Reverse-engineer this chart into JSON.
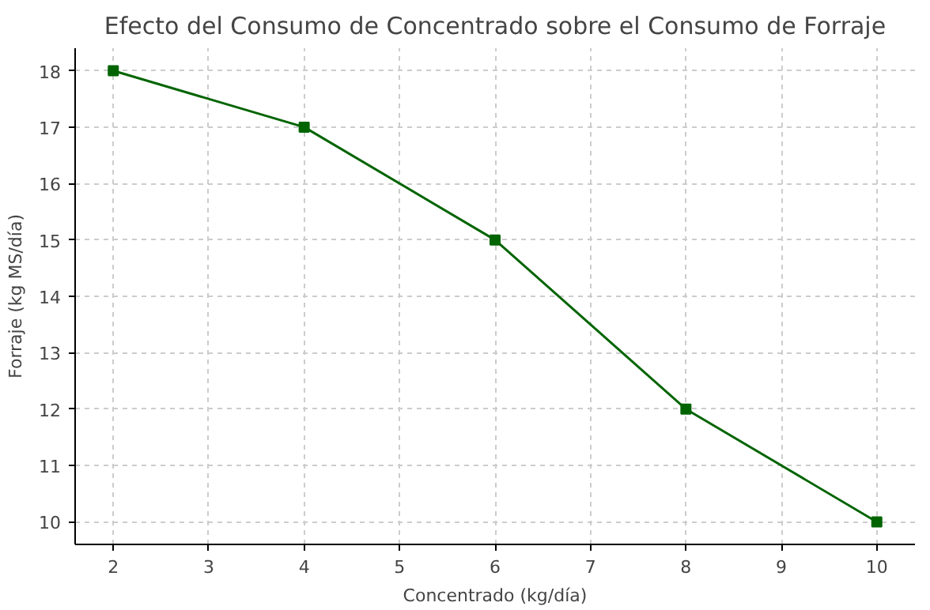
{
  "chart_data": {
    "type": "line",
    "title": "Efecto del Consumo de Concentrado sobre el Consumo de Forraje",
    "xlabel": "Concentrado (kg/día)",
    "ylabel": "Forraje (kg MS/día)",
    "x": [
      2,
      4,
      6,
      8,
      10
    ],
    "series": [
      {
        "color": "#006400",
        "values": [
          18,
          17,
          15,
          12,
          10
        ]
      }
    ],
    "xlim": [
      1.6,
      10.4
    ],
    "ylim": [
      9.6,
      18.4
    ],
    "xticks": [
      2,
      3,
      4,
      5,
      6,
      7,
      8,
      9,
      10
    ],
    "yticks": [
      10,
      11,
      12,
      13,
      14,
      15,
      16,
      17,
      18
    ],
    "grid": true,
    "marker": "square",
    "line_style": "solid"
  }
}
